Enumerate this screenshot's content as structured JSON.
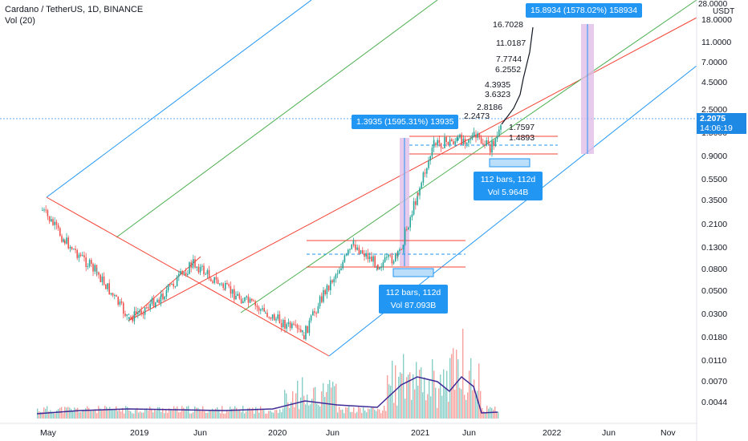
{
  "header": {
    "symbol_line": "Cardano / TetherUS, 1D, BINANCE",
    "indicator": "Vol (20)"
  },
  "price_axis": {
    "currency": "USDT",
    "top_label": "28.0000",
    "ticks": [
      "18.0000",
      "11.0000",
      "7.0000",
      "4.5000",
      "2.5000",
      "1.5000",
      "0.9000",
      "0.5500",
      "0.3500",
      "0.2100",
      "0.1300",
      "0.0800",
      "0.0500",
      "0.0300",
      "0.0180",
      "0.0110",
      "0.0070",
      "0.0044"
    ],
    "current_price": "2.2075",
    "countdown": "14:06:19"
  },
  "time_axis": {
    "ticks": [
      "May",
      "2019",
      "Jun",
      "2020",
      "Jun",
      "2021",
      "Jun",
      "2022",
      "Jun",
      "Nov"
    ]
  },
  "annotations": {
    "top_measure": "15.8934 (1578.02%) 158934",
    "mid_measure": "1.3935 (1595.31%) 13935",
    "range_box_1": {
      "line1": "112 bars, 112d",
      "line2": "Vol 5.964B"
    },
    "range_box_2": {
      "line1": "112 bars, 112d",
      "line2": "Vol 87.093B"
    },
    "fib_labels": [
      "16.7028",
      "11.0187",
      "7.7744",
      "6.2552",
      "4.3935",
      "3.6323",
      "2.8186",
      "2.2473",
      "1.7597",
      "1.4893"
    ]
  },
  "colors": {
    "up": "#26a69a",
    "down": "#ef5350",
    "pitchfork_blue": "#2196f3",
    "pitchfork_green": "#4caf50",
    "pitchfork_red": "#f44336",
    "volume_ma": "#3f2a96",
    "measure_fill": "#e1bee7"
  }
}
